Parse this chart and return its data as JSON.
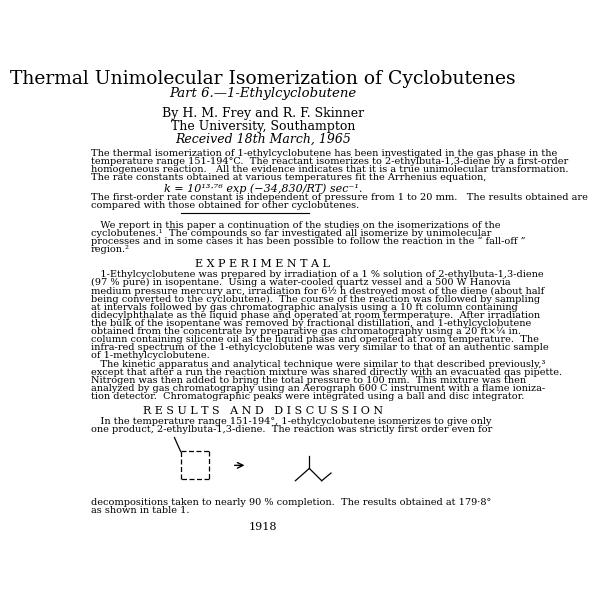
{
  "title": "Thermal Unimolecular Isomerization of Cyclobutenes",
  "subtitle": "Part 6.—1-Ethylcyclobutene",
  "authors": "By H. M. Frey and R. F. Skinner",
  "institution": "The University, Southampton",
  "received": "Received 18th March, 1965",
  "abstract": [
    "The thermal isomerization of 1-ethylcyclobutene has been investigated in the gas phase in the",
    "temperature range 151-194°C.  The reactant isomerizes to 2-ethylbuta-1,3-diene by a first-order",
    "homogeneous reaction.   All the evidence indicates that it is a true unimolecular transformation.",
    "The rate constants obtained at various temperatures fit the Arrhenius equation,"
  ],
  "equation": "k = 10¹³·⁷⁶ exp (−34,830/RT) sec⁻¹.",
  "abstract2": [
    "The first-order rate constant is independent of pressure from 1 to 20 mm.   The results obtained are",
    "compared with those obtained for other cyclobutenes."
  ],
  "intro": [
    "   We report in this paper a continuation of the studies on the isomerizations of the",
    "cyclobutenes.¹  The compounds so far investigated all isomerize by unimolecular",
    "processes and in some cases it has been possible to follow the reaction in the “ fall-off ”",
    "region.²"
  ],
  "experimental_title": "E X P E R I M E N T A L",
  "experimental": [
    "   1-Ethylcyclobutene was prepared by irradiation of a 1 % solution of 2-ethylbuta-1,3-diene",
    "(97 % pure) in isopentane.  Using a water-cooled quartz vessel and a 500 W Hanovia",
    "medium pressure mercury arc, irradiation for 6½ h destroyed most of the diene (about half",
    "being converted to the cyclobutene).  The course of the reaction was followed by sampling",
    "at intervals followed by gas chromatographic analysis using a 10 ft column containing",
    "didecylphthalate as the liquid phase and operated at room termperature.  After irradiation",
    "the bulk of the isopentane was removed by fractional distillation, and 1-ethylcyclobutene",
    "obtained from the concentrate by preparative gas chromatography using a 20 ft×¼ in.",
    "column containing silicone oil as the liquid phase and operated at room temperature.  The",
    "infra-red spectrum of the 1-ethylcyclobutene was very similar to that of an authentic sample",
    "of 1-methylcyclobutene."
  ],
  "kinetics": [
    "   The kinetic apparatus and analytical technique were similar to that described previously,³",
    "except that after a run the reaction mixture was shared directly with an evacuated gas pipette.",
    "Nitrogen was then added to bring the total pressure to 100 mm.  This mixture was then",
    "analyzed by gas chromatography using an Aerograph 600 C instrument with a flame ioniza-",
    "tion detector.  Chromatographic peaks were integrated using a ball and disc integrator."
  ],
  "results_title": "R E S U L T S   A N D   D I S C U S S I O N",
  "results": [
    "   In the temperature range 151-194°, 1-ethylcyclobutene isomerizes to give only",
    "one product, 2-ethylbuta-1,3-diene.  The reaction was strictly first order even for"
  ],
  "footer": [
    "decompositions taken to nearly 90 % completion.  The results obtained at 179·8°",
    "as shown in table 1."
  ],
  "page_number": "1918",
  "bg_color": "#ffffff",
  "text_color": "#000000"
}
